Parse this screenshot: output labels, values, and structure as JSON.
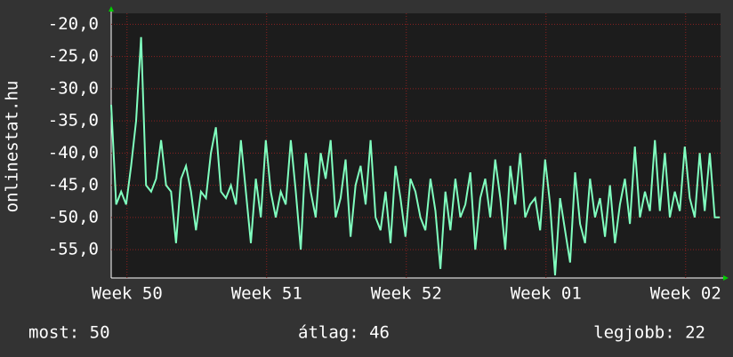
{
  "chart_data": {
    "type": "line",
    "y_label": "onlinestat.hu",
    "x": [
      0,
      6,
      12,
      18,
      24,
      30,
      36,
      42,
      48,
      54,
      60,
      66,
      72,
      78,
      84,
      90,
      96,
      102,
      108,
      114,
      120,
      126,
      132,
      138,
      144,
      150,
      156,
      162,
      168,
      174,
      180,
      186,
      192,
      198,
      204,
      210,
      216,
      222,
      228,
      234,
      240,
      246,
      252,
      258,
      264,
      270,
      276,
      282,
      288,
      294,
      300,
      306,
      312,
      318,
      324,
      330,
      336,
      342,
      348,
      354,
      360,
      366,
      372,
      378,
      384,
      390,
      396,
      402,
      408,
      414,
      420,
      426,
      432,
      438,
      444,
      450,
      456,
      462,
      468,
      474,
      480,
      486,
      492,
      498,
      504,
      510,
      516,
      522,
      528,
      534,
      540,
      546,
      552,
      558,
      564,
      570,
      576,
      582,
      588,
      594,
      600,
      606,
      612,
      618,
      624,
      630,
      636,
      642,
      648,
      654,
      660,
      666,
      672,
      678,
      684,
      690,
      696,
      702,
      708,
      714,
      720,
      726,
      732
    ],
    "series": [
      {
        "name": "onlinestat.hu",
        "color": "#80ffbf",
        "values": [
          -32.5,
          -48,
          -46,
          -48,
          -42,
          -35,
          -22,
          -45,
          -46,
          -44,
          -38,
          -45,
          -46,
          -54,
          -44,
          -42,
          -46,
          -52,
          -46,
          -47,
          -40,
          -36,
          -46,
          -47,
          -45,
          -48,
          -38,
          -46,
          -54,
          -44,
          -50,
          -38,
          -46,
          -50,
          -46,
          -48,
          -38,
          -46,
          -55,
          -40,
          -46,
          -50,
          -40,
          -44,
          -38,
          -50,
          -47,
          -41,
          -53,
          -45,
          -42,
          -48,
          -38,
          -50,
          -52,
          -46,
          -54,
          -42,
          -47,
          -53,
          -44,
          -46,
          -50,
          -52,
          -44,
          -49,
          -58,
          -46,
          -52,
          -44,
          -50,
          -48,
          -43,
          -55,
          -47,
          -44,
          -50,
          -41,
          -47,
          -55,
          -42,
          -48,
          -40,
          -50,
          -48,
          -47,
          -52,
          -41,
          -48,
          -59,
          -47,
          -52,
          -57,
          -43,
          -51,
          -54,
          -44,
          -50,
          -47,
          -53,
          -45,
          -54,
          -48,
          -44,
          -51,
          -39,
          -50,
          -46,
          -49,
          -38,
          -49,
          -40,
          -50,
          -46,
          -49,
          -39,
          -47,
          -50,
          -40,
          -49,
          -40,
          -50,
          -50
        ]
      }
    ],
    "xlim": [
      0,
      733
    ],
    "xticks": [
      {
        "value": 19,
        "label": "Week 50"
      },
      {
        "value": 187,
        "label": "Week 51"
      },
      {
        "value": 355,
        "label": "Week 52"
      },
      {
        "value": 523,
        "label": "Week 01"
      },
      {
        "value": 691,
        "label": "Week 02"
      }
    ],
    "ylim": [
      -59.4,
      -18.3
    ],
    "yticks": [
      {
        "value": -20,
        "label": "-20,0"
      },
      {
        "value": -25,
        "label": "-25,0"
      },
      {
        "value": -30,
        "label": "-30,0"
      },
      {
        "value": -35,
        "label": "-35,0"
      },
      {
        "value": -40,
        "label": "-40,0"
      },
      {
        "value": -45,
        "label": "-45,0"
      },
      {
        "value": -50,
        "label": "-50,0"
      },
      {
        "value": -55,
        "label": "-55,0"
      }
    ],
    "grid": true,
    "footer": [
      "most: 50",
      "átlag: 46",
      "legjobb: 22"
    ]
  }
}
